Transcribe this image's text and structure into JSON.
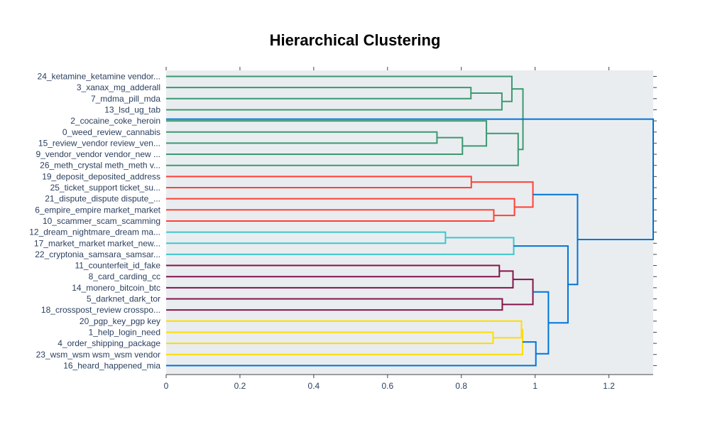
{
  "chart_data": {
    "type": "dendrogram",
    "title": "Hierarchical Clustering",
    "xlabel": "",
    "ylabel": "",
    "xlim": [
      0,
      1.32
    ],
    "x_ticks": [
      0,
      0.2,
      0.4,
      0.6,
      0.8,
      1,
      1.2
    ],
    "x_tick_labels": [
      "0",
      "0.2",
      "0.4",
      "0.6",
      "0.8",
      "1",
      "1.2"
    ],
    "grid": false,
    "plot_background": "#E9EDF0",
    "leaves": [
      "24_ketamine_ketamine vendor...",
      "3_xanax_mg_adderall",
      "7_mdma_pill_mda",
      "13_lsd_ug_tab",
      "2_cocaine_coke_heroin",
      "0_weed_review_cannabis",
      "15_review_vendor review_ven...",
      "9_vendor_vendor vendor_new ...",
      "26_meth_crystal meth_meth v...",
      "19_deposit_deposited_address",
      "25_ticket_support ticket_su...",
      "21_dispute_dispute dispute_...",
      "6_empire_empire market_market",
      "10_scammer_scam_scamming",
      "12_dream_nightmare_dream ma...",
      "17_market_market market_new...",
      "22_cryptonia_samsara_samsar...",
      "11_counterfeit_id_fake",
      "8_card_carding_cc",
      "14_monero_bitcoin_btc",
      "5_darknet_dark_tor",
      "18_crosspost_review crosspo...",
      "20_pgp_key_pgp key",
      "1_help_login_need",
      "4_order_shipping_package",
      "23_wsm_wsm wsm_wsm vendor",
      "16_heard_happened_mia"
    ],
    "colors": {
      "green": "#3D9970",
      "red": "#FF4136",
      "cyan": "#3DC6CC",
      "maroon": "#85144B",
      "yellow": "#FFDC00",
      "blue": "#0074D9"
    },
    "links": [
      {
        "a": 1,
        "b": 2,
        "h": 0.826,
        "c": "green"
      },
      {
        "a": 1.5,
        "b": 3,
        "h": 0.91,
        "c": "green"
      },
      {
        "a": 0,
        "b": 2.25,
        "h": 0.937,
        "c": "green"
      },
      {
        "a": 5,
        "b": 6,
        "h": 0.734,
        "c": "green"
      },
      {
        "a": 5.5,
        "b": 7,
        "h": 0.803,
        "c": "green"
      },
      {
        "a": 4,
        "b": 6.25,
        "h": 0.868,
        "c": "green"
      },
      {
        "a": 5.125,
        "b": 8,
        "h": 0.954,
        "c": "green"
      },
      {
        "a": 1.125,
        "b": 6.5625,
        "h": 0.967,
        "c": "green"
      },
      {
        "a": 9,
        "b": 10,
        "h": 0.827,
        "c": "red"
      },
      {
        "a": 12,
        "b": 13,
        "h": 0.888,
        "c": "red"
      },
      {
        "a": 11,
        "b": 12.5,
        "h": 0.944,
        "c": "red"
      },
      {
        "a": 9.5,
        "b": 11.75,
        "h": 0.994,
        "c": "red"
      },
      {
        "a": 14,
        "b": 15,
        "h": 0.757,
        "c": "cyan"
      },
      {
        "a": 14.5,
        "b": 16,
        "h": 0.942,
        "c": "cyan"
      },
      {
        "a": 17,
        "b": 18,
        "h": 0.903,
        "c": "maroon"
      },
      {
        "a": 17.5,
        "b": 19,
        "h": 0.94,
        "c": "maroon"
      },
      {
        "a": 20,
        "b": 21,
        "h": 0.911,
        "c": "maroon"
      },
      {
        "a": 18.25,
        "b": 20.5,
        "h": 0.994,
        "c": "maroon"
      },
      {
        "a": 23,
        "b": 24,
        "h": 0.886,
        "c": "yellow"
      },
      {
        "a": 22,
        "b": 23.5,
        "h": 0.963,
        "c": "yellow"
      },
      {
        "a": 22.75,
        "b": 25,
        "h": 0.966,
        "c": "yellow"
      },
      {
        "a": 23.875,
        "b": 26,
        "h": 1.002,
        "c": "blue"
      },
      {
        "a": 19.375,
        "b": 24.9375,
        "h": 1.036,
        "c": "blue"
      },
      {
        "a": 15.25,
        "b": 22.15625,
        "h": 1.089,
        "c": "blue"
      },
      {
        "a": 10.625,
        "b": 18.703,
        "h": 1.115,
        "c": "blue"
      },
      {
        "a": 3.84,
        "b": 14.664,
        "h": 1.32,
        "c": "blue"
      }
    ]
  }
}
